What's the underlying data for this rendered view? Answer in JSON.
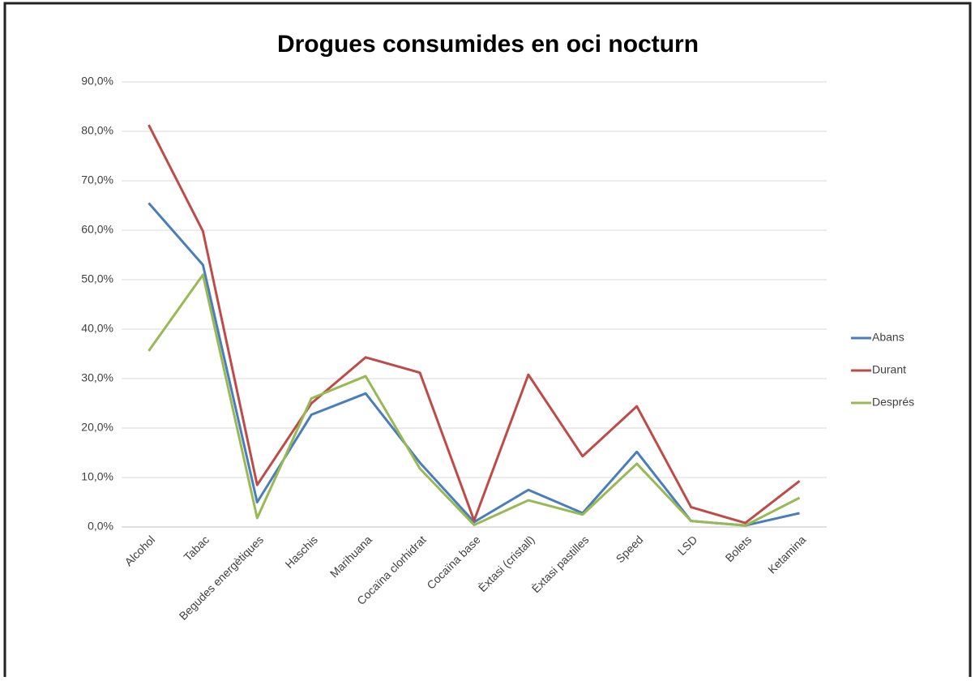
{
  "chart_data": {
    "type": "line",
    "title": "Drogues consumides en oci nocturn",
    "categories": [
      "Alcohol",
      "Tabac",
      "Begudes energètiques",
      "Haschis",
      "Marihuana",
      "Cocaïna clorhidrat",
      "Cocaïna base",
      "Èxtasi (cristall)",
      "Èxtasi pastilles",
      "Speed",
      "LSD",
      "Bolets",
      "Ketamina"
    ],
    "series": [
      {
        "name": "Abans",
        "color": "#4a7ebb",
        "values": [
          65.5,
          53,
          5,
          22.7,
          27,
          13,
          1,
          7.5,
          2.8,
          15.2,
          1.2,
          0.3,
          2.8
        ]
      },
      {
        "name": "Durant",
        "color": "#be4b48",
        "values": [
          81.3,
          59.8,
          8.5,
          25,
          34.3,
          31.2,
          1.3,
          30.8,
          14.3,
          24.4,
          4,
          0.8,
          9.3
        ]
      },
      {
        "name": "Després",
        "color": "#98b954",
        "values": [
          35.6,
          51,
          1.8,
          26,
          30.5,
          11.8,
          0.4,
          5.4,
          2.5,
          12.8,
          1.2,
          0.3,
          5.9
        ]
      }
    ],
    "ylim": [
      0,
      90
    ],
    "yticks": [
      {
        "value": 0,
        "label": "0,0%"
      },
      {
        "value": 10,
        "label": "10,0%"
      },
      {
        "value": 20,
        "label": "20,0%"
      },
      {
        "value": 30,
        "label": "30,0%"
      },
      {
        "value": 40,
        "label": "40,0%"
      },
      {
        "value": 50,
        "label": "50,0%"
      },
      {
        "value": 60,
        "label": "60,0%"
      },
      {
        "value": 70,
        "label": "70,0%"
      },
      {
        "value": 80,
        "label": "80,0%"
      },
      {
        "value": 90,
        "label": "90,0%"
      }
    ],
    "grid": true,
    "legend": "right"
  }
}
